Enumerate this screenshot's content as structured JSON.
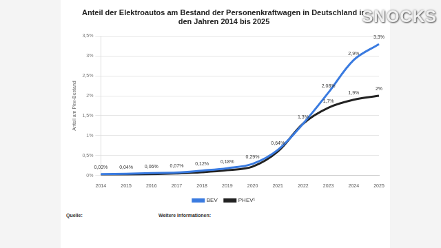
{
  "chart_data": {
    "type": "line",
    "title": [
      "Anteil der Elektroautos am Bestand der Personenkraftwagen in Deutschland in",
      "den Jahren 2014 bis 2025"
    ],
    "y_label": "Anteil am Pkw-Bestand",
    "annotations": [
      "SNOCKS",
      "Quelle:",
      "Weitere Informationen:"
    ],
    "categories": [
      "2014",
      "2015",
      "2016",
      "2017",
      "2018",
      "2019",
      "2020",
      "2021",
      "2022",
      "2023",
      "2024",
      "2025"
    ],
    "series": [
      {
        "name": "BEV",
        "color": "#3a7be0",
        "values": [
          0.03,
          0.04,
          0.06,
          0.07,
          0.12,
          0.18,
          0.29,
          0.64,
          1.3,
          2.08,
          2.9,
          3.3
        ],
        "value_labels": [
          "0,03%",
          "0,04%",
          "0,06%",
          "0,07%",
          "0,12%",
          "0,18%",
          "0,29%",
          "0,64%",
          "1,3%",
          "2,08%",
          "2,9%",
          "3,3%"
        ]
      },
      {
        "name": "PHEV¹",
        "color": "#222222",
        "values": [
          0.01,
          0.02,
          0.03,
          0.05,
          0.08,
          0.13,
          0.22,
          0.6,
          1.3,
          1.7,
          1.9,
          2
        ],
        "value_labels": [
          null,
          null,
          null,
          null,
          null,
          null,
          null,
          null,
          null,
          "1,7%",
          "1,9%",
          "2%"
        ]
      }
    ],
    "ylim": [
      0,
      3.5
    ],
    "yticks": [
      {
        "value": 0,
        "label": "0%"
      },
      {
        "value": 0.5,
        "label": "0,5%"
      },
      {
        "value": 1,
        "label": "1%"
      },
      {
        "value": 1.5,
        "label": "1,5%"
      },
      {
        "value": 2,
        "label": "2%"
      },
      {
        "value": 2.5,
        "label": "2,5%"
      },
      {
        "value": 3,
        "label": "3%"
      },
      {
        "value": 3.5,
        "label": "3,5%"
      }
    ],
    "grid": true,
    "legend": "bottom",
    "data_labels": true
  }
}
